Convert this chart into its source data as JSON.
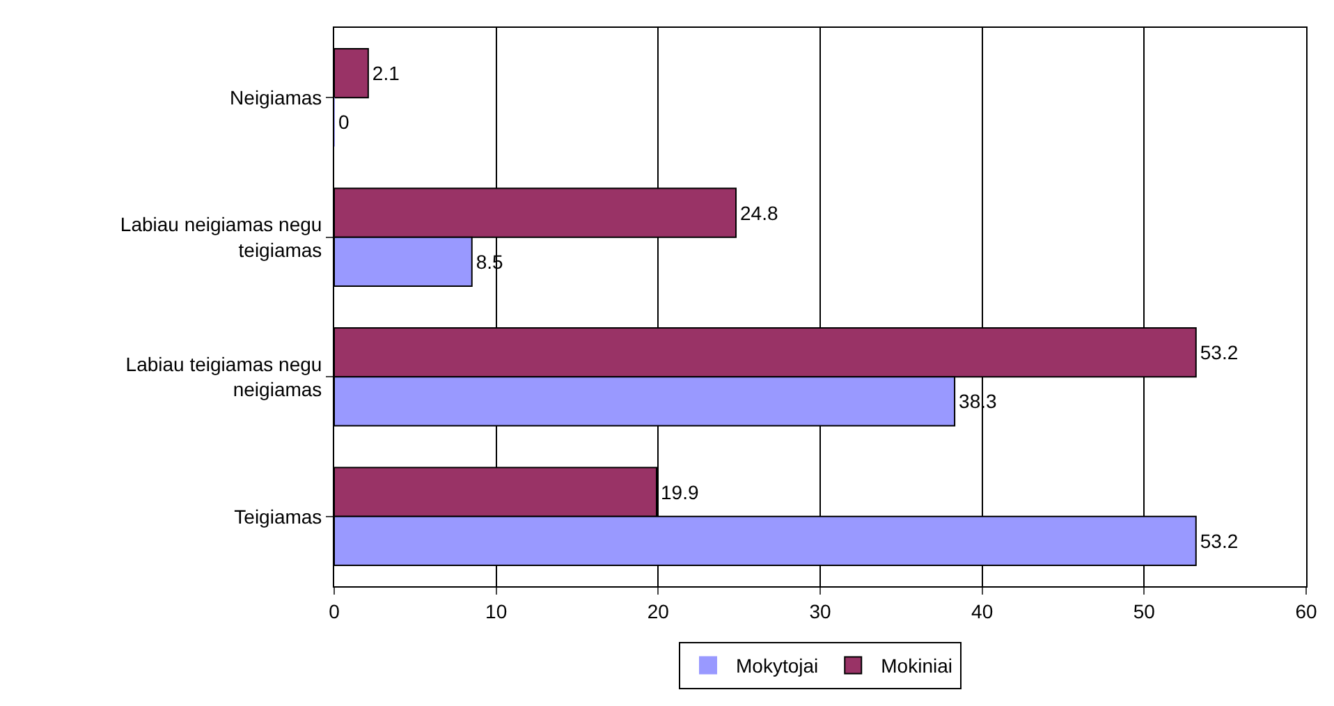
{
  "chart_data": {
    "type": "bar",
    "orientation": "horizontal",
    "categories": [
      "Neigiamas",
      "Labiau neigiamas negu teigiamas",
      "Labiau teigiamas negu neigiamas",
      "Teigiamas"
    ],
    "series": [
      {
        "name": "Mokiniai",
        "color": "#993366",
        "values": [
          2.1,
          24.8,
          53.2,
          19.9
        ]
      },
      {
        "name": "Mokytojai",
        "color": "#9999ff",
        "values": [
          0,
          8.5,
          38.3,
          53.2
        ]
      }
    ],
    "xlim": [
      0,
      60
    ],
    "xticks": [
      0,
      10,
      20,
      30,
      40,
      50,
      60
    ],
    "grid": "x",
    "legend": "bottom",
    "data_labels": true
  }
}
